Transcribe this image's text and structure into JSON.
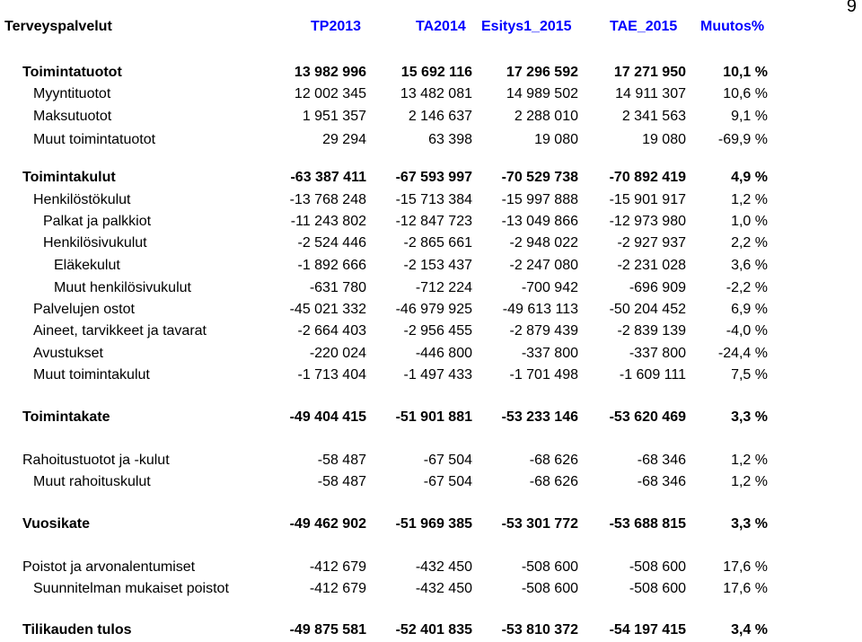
{
  "page_number": "9",
  "header": {
    "title": "Terveyspalvelut",
    "cols": [
      "TP2013",
      "TA2014",
      "Esitys1_2015",
      "TAE_2015",
      "Muutos%"
    ]
  },
  "rows": [
    {
      "label": "Toimintatuotot",
      "v": [
        "13 982 996",
        "15 692 116",
        "17 296 592",
        "17 271 950",
        "10,1 %"
      ]
    },
    {
      "label": "Myyntituotot",
      "v": [
        "12 002 345",
        "13 482 081",
        "14 989 502",
        "14 911 307",
        "10,6 %"
      ]
    },
    {
      "label": "Maksutuotot",
      "v": [
        "1 951 357",
        "2 146 637",
        "2 288 010",
        "2 341 563",
        "9,1 %"
      ]
    },
    {
      "label": "Muut toimintatuotot",
      "v": [
        "29 294",
        "63 398",
        "19 080",
        "19 080",
        "-69,9 %"
      ]
    },
    {
      "label": "Toimintakulut",
      "v": [
        "-63 387 411",
        "-67 593 997",
        "-70 529 738",
        "-70 892 419",
        "4,9 %"
      ]
    },
    {
      "label": "Henkilöstökulut",
      "v": [
        "-13 768 248",
        "-15 713 384",
        "-15 997 888",
        "-15 901 917",
        "1,2 %"
      ]
    },
    {
      "label": "Palkat ja palkkiot",
      "v": [
        "-11 243 802",
        "-12 847 723",
        "-13 049 866",
        "-12 973 980",
        "1,0 %"
      ]
    },
    {
      "label": "Henkilösivukulut",
      "v": [
        "-2 524 446",
        "-2 865 661",
        "-2 948 022",
        "-2 927 937",
        "2,2 %"
      ]
    },
    {
      "label": "Eläkekulut",
      "v": [
        "-1 892 666",
        "-2 153 437",
        "-2 247 080",
        "-2 231 028",
        "3,6 %"
      ]
    },
    {
      "label": "Muut henkilösivukulut",
      "v": [
        "-631 780",
        "-712 224",
        "-700 942",
        "-696 909",
        "-2,2 %"
      ]
    },
    {
      "label": "Palvelujen ostot",
      "v": [
        "-45 021 332",
        "-46 979 925",
        "-49 613 113",
        "-50 204 452",
        "6,9 %"
      ]
    },
    {
      "label": "Aineet, tarvikkeet ja tavarat",
      "v": [
        "-2 664 403",
        "-2 956 455",
        "-2 879 439",
        "-2 839 139",
        "-4,0 %"
      ]
    },
    {
      "label": "Avustukset",
      "v": [
        "-220 024",
        "-446 800",
        "-337 800",
        "-337 800",
        "-24,4 %"
      ]
    },
    {
      "label": "Muut toimintakulut",
      "v": [
        "-1 713 404",
        "-1 497 433",
        "-1 701 498",
        "-1 609 111",
        "7,5 %"
      ]
    },
    {
      "label": "Toimintakate",
      "v": [
        "-49 404 415",
        "-51 901 881",
        "-53 233 146",
        "-53 620 469",
        "3,3 %"
      ]
    },
    {
      "label": "Rahoitustuotot ja -kulut",
      "v": [
        "-58 487",
        "-67 504",
        "-68 626",
        "-68 346",
        "1,2 %"
      ]
    },
    {
      "label": "Muut rahoituskulut",
      "v": [
        "-58 487",
        "-67 504",
        "-68 626",
        "-68 346",
        "1,2 %"
      ]
    },
    {
      "label": "Vuosikate",
      "v": [
        "-49 462 902",
        "-51 969 385",
        "-53 301 772",
        "-53 688 815",
        "3,3 %"
      ]
    },
    {
      "label": "Poistot ja arvonalentumiset",
      "v": [
        "-412 679",
        "-432 450",
        "-508 600",
        "-508 600",
        "17,6 %"
      ]
    },
    {
      "label": "Suunnitelman mukaiset poistot",
      "v": [
        "-412 679",
        "-432 450",
        "-508 600",
        "-508 600",
        "17,6 %"
      ]
    },
    {
      "label": "Tilikauden tulos",
      "v": [
        "-49 875 581",
        "-52 401 835",
        "-53 810 372",
        "-54 197 415",
        "3,4 %"
      ]
    }
  ]
}
